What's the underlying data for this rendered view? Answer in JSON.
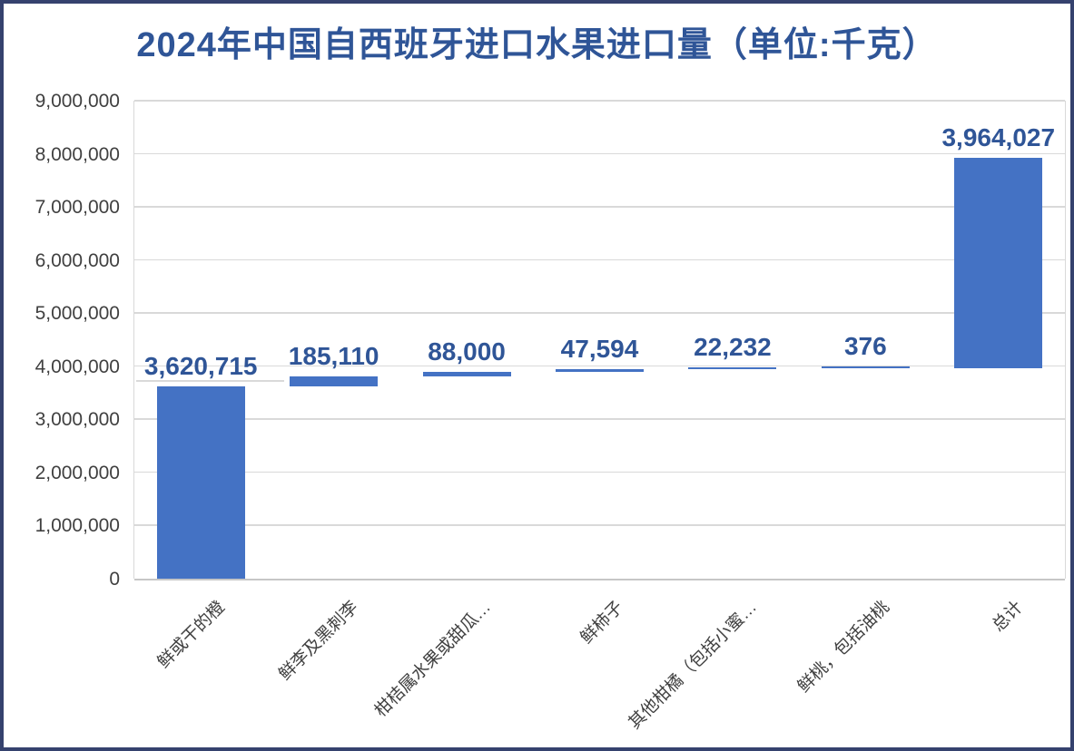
{
  "title": "2024年中国自西班牙进口水果进口量（单位:千克）",
  "colors": {
    "title": "#2F5597",
    "data_label": "#2F5597",
    "bar_fill": "#4472C4",
    "gridline": "#D9D9D9",
    "axis_text": "#404040",
    "outer_border": "#35426E",
    "background": "#FFFFFF"
  },
  "chart_data": {
    "type": "bar",
    "subtype": "waterfall",
    "title": "2024年中国自西班牙进口水果进口量（单位:千克）",
    "categories": [
      "鲜或干的橙",
      "鲜李及黑刺李",
      "柑桔属水果或甜瓜…",
      "鲜柿子",
      "其他柑橘（包括小蜜…",
      "鲜桃，包括油桃",
      "总计"
    ],
    "values": [
      3620715,
      185110,
      88000,
      47594,
      22232,
      376,
      3964027
    ],
    "data_labels": [
      "3,620,715",
      "185,110",
      "88,000",
      "47,594",
      "22,232",
      "376",
      "3,964,027"
    ],
    "total_value": 3964027,
    "xlabel": "",
    "ylabel": "",
    "ylim": [
      0,
      9000000
    ],
    "ytick_interval": 1000000,
    "ytick_labels": [
      "0",
      "1,000,000",
      "2,000,000",
      "3,000,000",
      "4,000,000",
      "5,000,000",
      "6,000,000",
      "7,000,000",
      "8,000,000",
      "9,000,000"
    ],
    "grid": true,
    "legend": "none",
    "bar_color": "#4472C4",
    "label_placement": "outside-end",
    "note": "waterfall: each column floats on the cumulative sum of all previous columns; the 总计 column is also stacked on the cumulative total"
  }
}
